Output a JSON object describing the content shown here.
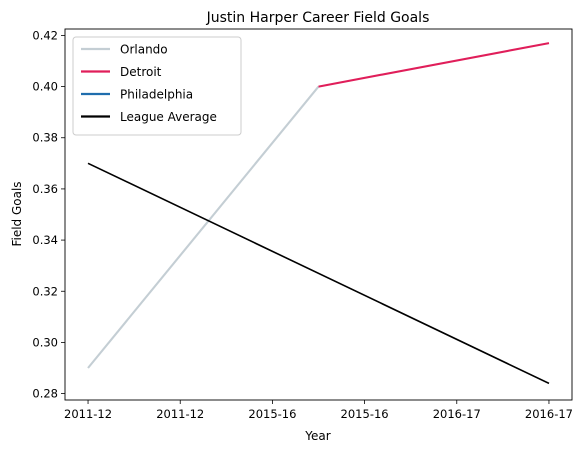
{
  "chart_data": {
    "type": "line",
    "title": "Justin Harper  Career Field Goals",
    "xlabel": "Year",
    "ylabel": "Field Goals",
    "x_ticks": [
      "2011-12",
      "2011-12",
      "2015-16",
      "2015-16",
      "2016-17",
      "2016-17"
    ],
    "xlim": [
      -0.25,
      5.25
    ],
    "ylim": [
      0.2775,
      0.4225
    ],
    "y_ticks": [
      0.28,
      0.3,
      0.32,
      0.34,
      0.36,
      0.38,
      0.4,
      0.42
    ],
    "legend_position": "top-left",
    "series": [
      {
        "name": "Orlando",
        "color": "#C4CED4",
        "x": [
          0,
          2.5
        ],
        "y": [
          0.29,
          0.4
        ]
      },
      {
        "name": "Detroit",
        "color": "#E01E5A",
        "x": [
          2.5,
          5
        ],
        "y": [
          0.4,
          0.417
        ]
      },
      {
        "name": "Philadelphia",
        "color": "#1F6DAD",
        "x": [],
        "y": []
      },
      {
        "name": "League Average",
        "color": "#000000",
        "x": [
          0,
          5
        ],
        "y": [
          0.37,
          0.284
        ]
      }
    ]
  }
}
